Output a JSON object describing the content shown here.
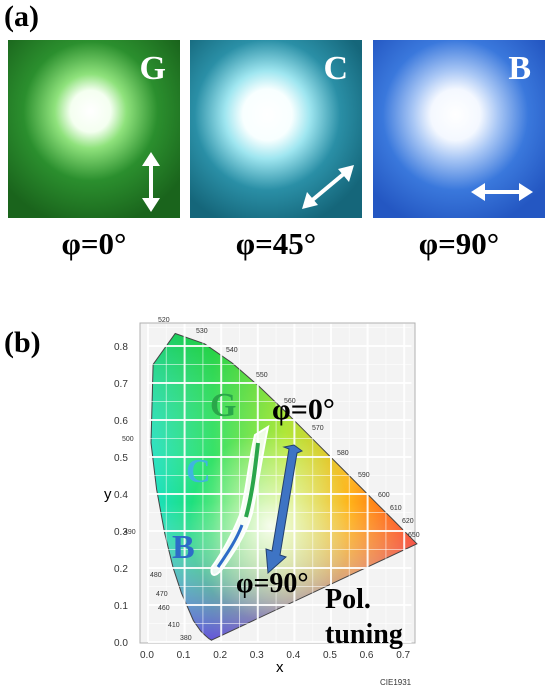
{
  "panel_a": {
    "label": "(a)",
    "tiles": [
      {
        "letter": "G",
        "phi": "φ=0°",
        "base": "#1c7a1f",
        "glow": "#b6f2a6"
      },
      {
        "letter": "C",
        "phi": "φ=45°",
        "base": "#167a8c",
        "glow": "#bff0f6"
      },
      {
        "letter": "B",
        "phi": "φ=90°",
        "base": "#2a66d6",
        "glow": "#c9dcfb"
      }
    ]
  },
  "panel_b": {
    "label": "(b)",
    "y_axis_label": "y",
    "x_axis_label": "x",
    "y_ticks": [
      "0.0",
      "0.1",
      "0.2",
      "0.3",
      "0.4",
      "0.5",
      "0.6",
      "0.7",
      "0.8"
    ],
    "x_ticks": [
      "0.0",
      "0.1",
      "0.2",
      "0.3",
      "0.4",
      "0.5",
      "0.6",
      "0.7"
    ],
    "wavelength_labels": [
      "520",
      "530",
      "540",
      "550",
      "560",
      "570",
      "580",
      "590",
      "600",
      "610",
      "620",
      "650",
      "500",
      "490",
      "480",
      "470",
      "460",
      "410",
      "380"
    ],
    "point_labels": {
      "g": "G",
      "c": "C",
      "b": "B"
    },
    "phi_top": "φ=0°",
    "phi_bottom": "φ=90°",
    "pol_line1": "Pol.",
    "pol_line2": "tuning",
    "footer": "CIE1931",
    "colors": {
      "g": "#2aa64a",
      "c": "#3fb5de",
      "b": "#2d6cc8",
      "arrow": "#3e74c4"
    }
  }
}
